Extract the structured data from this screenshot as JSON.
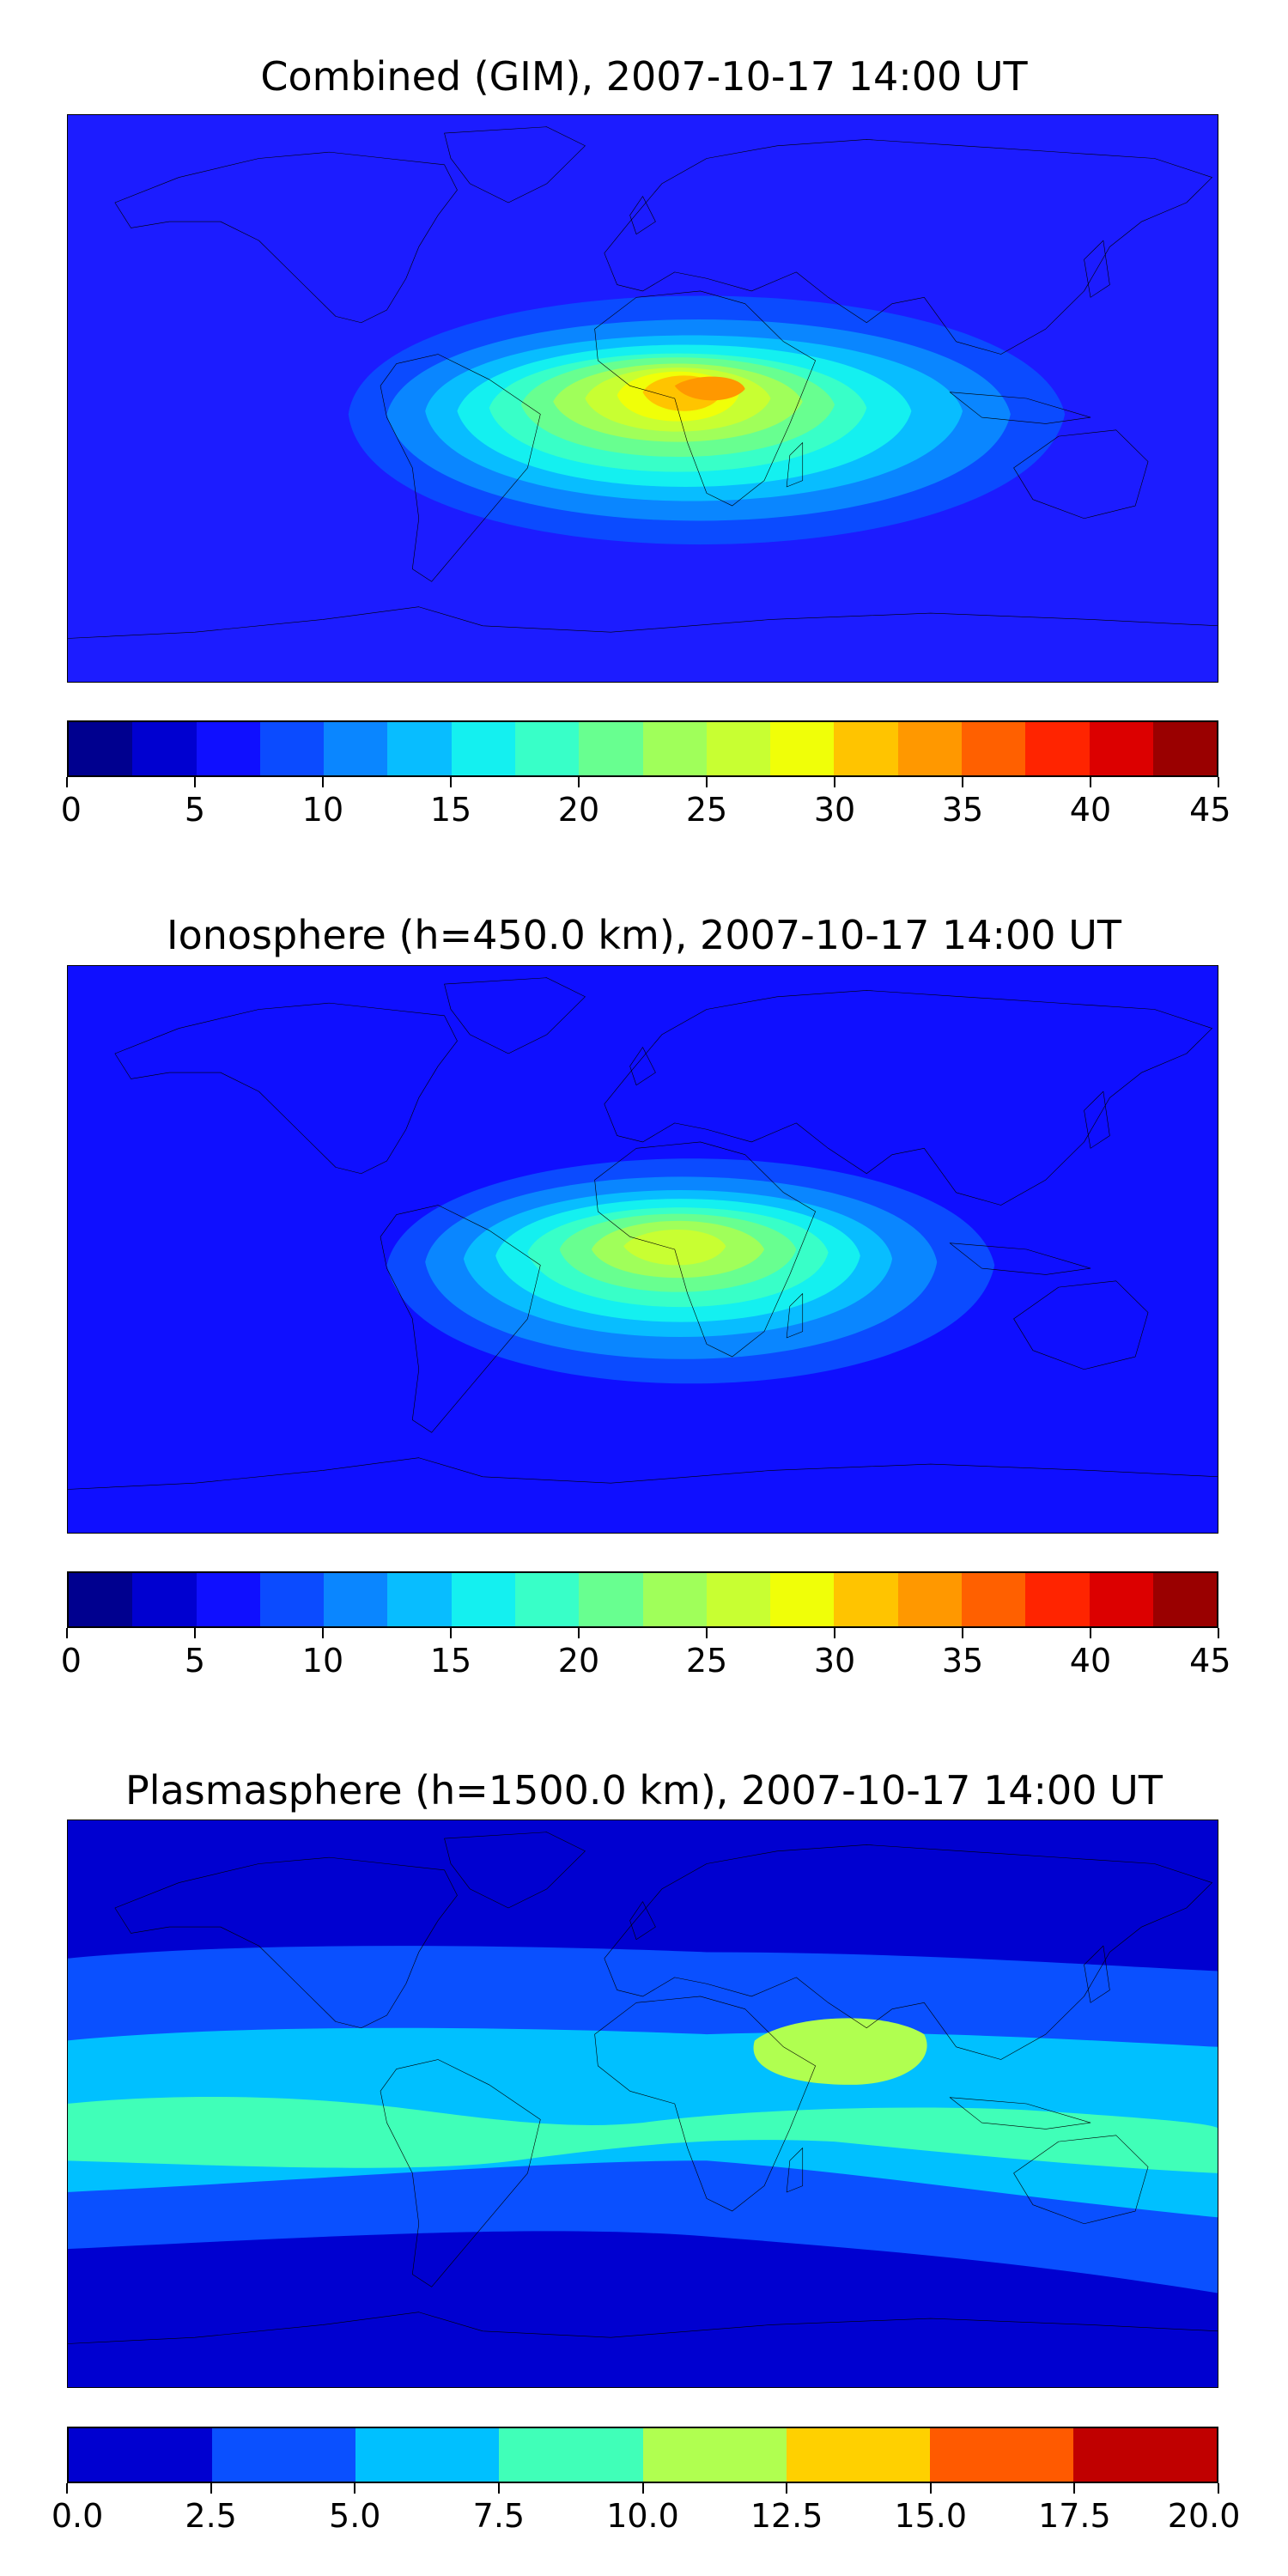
{
  "panels": [
    {
      "title": "Combined (GIM), 2007-10-17 14:00 UT",
      "field_name": "combined-tec-map",
      "background_color": "#1c1cff",
      "colorbar": {
        "ticks": [
          "0",
          "5",
          "10",
          "15",
          "20",
          "25",
          "30",
          "35",
          "40",
          "45"
        ],
        "colors": [
          "#00008f",
          "#0000d0",
          "#0f0fff",
          "#0b4bff",
          "#0a86ff",
          "#08bdff",
          "#14f0f0",
          "#38ffc8",
          "#68ff90",
          "#a0ff5a",
          "#c8ff32",
          "#f0ff08",
          "#ffc400",
          "#ff9800",
          "#ff6000",
          "#ff2400",
          "#dc0000",
          "#9a0000"
        ]
      },
      "contours": [
        {
          "level": "10",
          "color": "#0b4bff"
        },
        {
          "level": "12.5",
          "color": "#0a86ff"
        },
        {
          "level": "15",
          "color": "#08bdff"
        },
        {
          "level": "17.5",
          "color": "#14f0f0"
        },
        {
          "level": "20",
          "color": "#38ffc8"
        },
        {
          "level": "22.5",
          "color": "#68ff90"
        },
        {
          "level": "25",
          "color": "#a0ff5a"
        },
        {
          "level": "27.5",
          "color": "#c8ff32"
        },
        {
          "level": "30",
          "color": "#f0ff08"
        },
        {
          "level": "32.5",
          "color": "#ffc400"
        },
        {
          "level": "35",
          "color": "#ff9800"
        }
      ]
    },
    {
      "title": "Ionosphere  (h=450.0 km), 2007-10-17 14:00 UT",
      "field_name": "ionosphere-tec-map",
      "background_color": "#0f0fff",
      "colorbar": {
        "ticks": [
          "0",
          "5",
          "10",
          "15",
          "20",
          "25",
          "30",
          "35",
          "40",
          "45"
        ],
        "colors": [
          "#00008f",
          "#0000d0",
          "#0f0fff",
          "#0b4bff",
          "#0a86ff",
          "#08bdff",
          "#14f0f0",
          "#38ffc8",
          "#68ff90",
          "#a0ff5a",
          "#c8ff32",
          "#f0ff08",
          "#ffc400",
          "#ff9800",
          "#ff6000",
          "#ff2400",
          "#dc0000",
          "#9a0000"
        ]
      },
      "contours": [
        {
          "level": "7.5",
          "color": "#0b4bff"
        },
        {
          "level": "10",
          "color": "#0a86ff"
        },
        {
          "level": "12.5",
          "color": "#08bdff"
        },
        {
          "level": "15",
          "color": "#14f0f0"
        },
        {
          "level": "17.5",
          "color": "#38ffc8"
        },
        {
          "level": "20",
          "color": "#68ff90"
        },
        {
          "level": "22.5",
          "color": "#a0ff5a"
        },
        {
          "level": "25",
          "color": "#c8ff32"
        }
      ]
    },
    {
      "title": "Plasmasphere (h=1500.0 km), 2007-10-17 14:00 UT",
      "field_name": "plasmasphere-tec-map",
      "background_color": "#0000d0",
      "colorbar": {
        "ticks": [
          "0.0",
          "2.5",
          "5.0",
          "7.5",
          "10.0",
          "12.5",
          "15.0",
          "17.5",
          "20.0"
        ],
        "colors": [
          "#0000d0",
          "#0a50ff",
          "#00c0ff",
          "#40ffb8",
          "#b0ff50",
          "#ffd000",
          "#ff5a00",
          "#c00000"
        ]
      },
      "contours": [
        {
          "level": "2.5",
          "color": "#0a50ff"
        },
        {
          "level": "5.0",
          "color": "#00c0ff"
        },
        {
          "level": "7.5",
          "color": "#40ffb8"
        },
        {
          "level": "10.0",
          "color": "#b0ff50"
        }
      ]
    }
  ]
}
